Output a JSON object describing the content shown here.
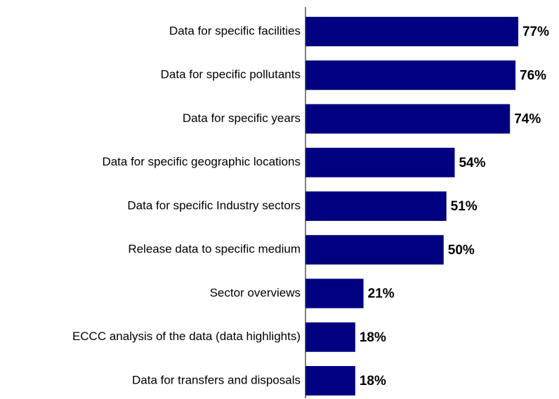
{
  "chart_data": {
    "type": "barh",
    "categories": [
      "Data for specific facilities",
      "Data for specific pollutants",
      "Data for specific years",
      "Data for specific geographic locations",
      "Data for specific Industry sectors",
      "Release data to specific medium",
      "Sector overviews",
      "ECCC analysis of the data (data highlights)",
      "Data for transfers and disposals"
    ],
    "values": [
      77,
      76,
      74,
      54,
      51,
      50,
      21,
      18,
      18
    ],
    "value_labels": [
      "77%",
      "76%",
      "74%",
      "54%",
      "51%",
      "50%",
      "21%",
      "18%",
      "18%"
    ],
    "color": "#000080"
  }
}
